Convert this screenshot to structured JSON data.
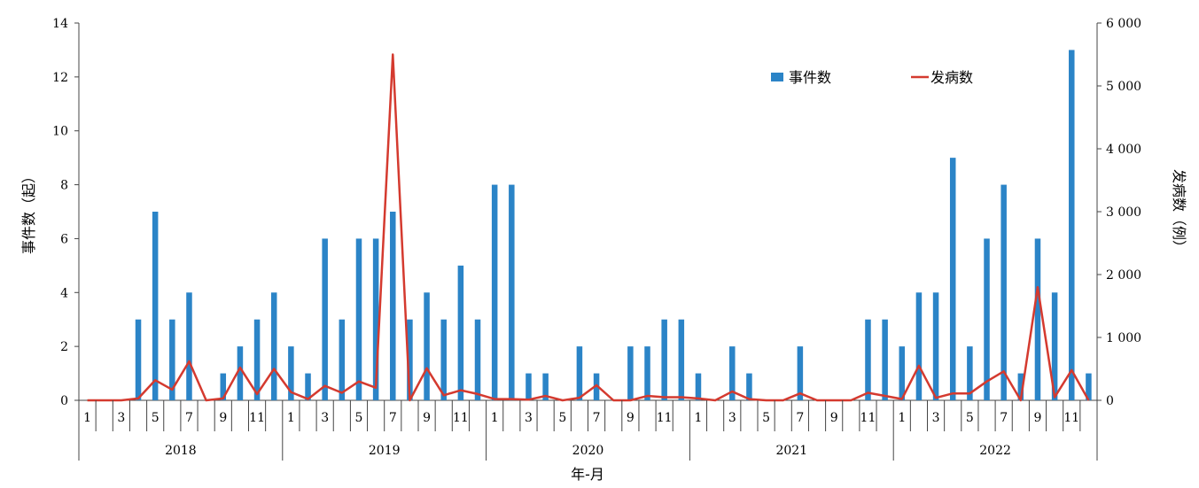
{
  "chart_data": {
    "type": "bar+line",
    "title": "",
    "xlabel": "年-月",
    "ylabel_left": "事件数（起）",
    "ylabel_right": "发病数（例）",
    "ylim_left": [
      0,
      14
    ],
    "ylim_right": [
      0,
      6000
    ],
    "yticks_left": [
      "0",
      "2",
      "4",
      "6",
      "8",
      "10",
      "12",
      "14"
    ],
    "yticks_right": [
      "0",
      "1 000",
      "2 000",
      "3 000",
      "4 000",
      "5 000",
      "6 000"
    ],
    "years": [
      "2018",
      "2019",
      "2020",
      "2021",
      "2022"
    ],
    "month_tick_labels": [
      "1",
      "3",
      "5",
      "7",
      "9",
      "11"
    ],
    "grid": false,
    "legend_position": "top-right",
    "series": [
      {
        "name": "事件数",
        "kind": "bar",
        "axis": "left",
        "color": "#2B84C7",
        "values": [
          0,
          0,
          0,
          3,
          7,
          3,
          4,
          0,
          1,
          2,
          3,
          4,
          2,
          1,
          6,
          3,
          6,
          6,
          7,
          3,
          4,
          3,
          5,
          3,
          8,
          8,
          1,
          1,
          0,
          2,
          1,
          0,
          2,
          2,
          3,
          3,
          1,
          0,
          2,
          1,
          0,
          0,
          2,
          0,
          0,
          0,
          3,
          3,
          2,
          4,
          4,
          9,
          2,
          6,
          8,
          1,
          6,
          4,
          13,
          1
        ]
      },
      {
        "name": "发病数",
        "kind": "line",
        "axis": "right",
        "color": "#D43A2F",
        "values": [
          0,
          0,
          0,
          30,
          320,
          170,
          620,
          0,
          30,
          520,
          100,
          500,
          130,
          20,
          230,
          120,
          300,
          200,
          5500,
          0,
          510,
          80,
          160,
          100,
          20,
          20,
          10,
          70,
          0,
          40,
          240,
          0,
          0,
          70,
          50,
          50,
          30,
          0,
          140,
          20,
          0,
          0,
          110,
          0,
          0,
          0,
          120,
          70,
          20,
          550,
          40,
          110,
          110,
          300,
          460,
          0,
          1800,
          50,
          480,
          0
        ]
      }
    ]
  }
}
